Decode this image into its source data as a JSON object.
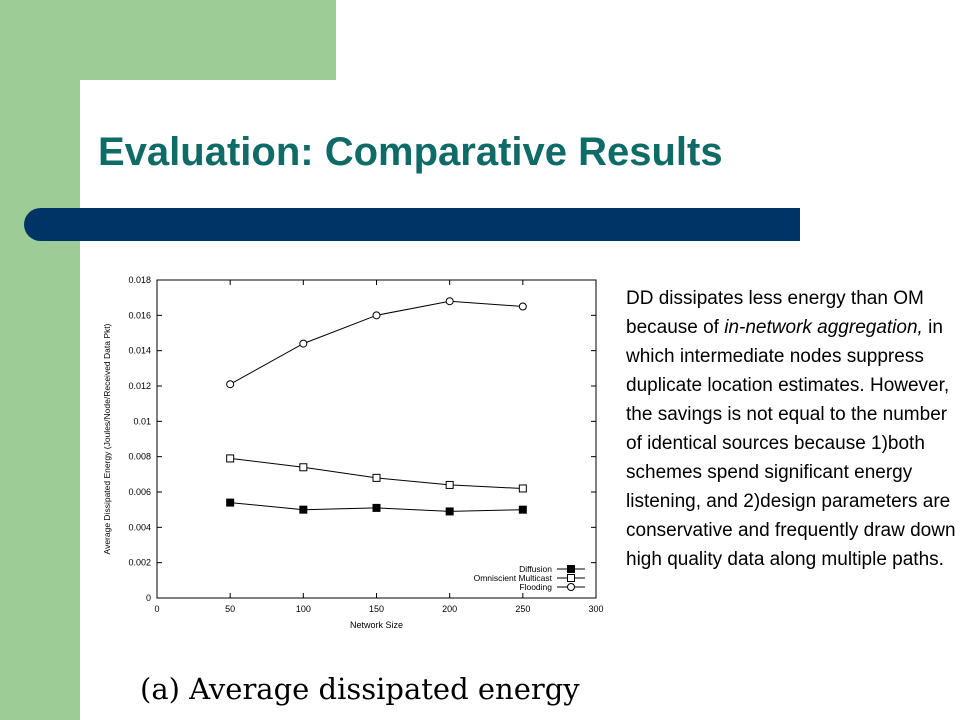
{
  "slide": {
    "title": "Evaluation: Comparative Results",
    "caption": "(a) Average dissipated energy",
    "body": {
      "part1": "DD dissipates less energy than OM because of ",
      "emphasis": "in-network aggregation,",
      "part2": " in which intermediate nodes suppress duplicate location estimates. However, the savings is not equal to the number of identical sources because 1)both schemes spend significant energy listening, and 2)design parameters are conservative and frequently draw down high quality data along multiple paths."
    },
    "colors": {
      "band": "#9dcc97",
      "title_bar": "#003466",
      "title_text": "#0f6b67"
    }
  },
  "chart_data": {
    "type": "line",
    "xlabel": "Network Size",
    "ylabel": "Average Dissipated Energy (Joules/Node/Received Data Pkt)",
    "xlim": [
      0,
      300
    ],
    "ylim": [
      0,
      0.018
    ],
    "x_ticks": [
      "0",
      "50",
      "100",
      "150",
      "200",
      "250",
      "300"
    ],
    "y_ticks": [
      "0",
      "0.002",
      "0.004",
      "0.006",
      "0.008",
      "0.01",
      "0.012",
      "0.014",
      "0.016",
      "0.018"
    ],
    "x": [
      50,
      100,
      150,
      200,
      250
    ],
    "legend_position": "bottom-right",
    "grid": false,
    "series": [
      {
        "name": "Diffusion",
        "marker": "filled-square",
        "values": [
          0.0054,
          0.005,
          0.0051,
          0.0049,
          0.005
        ]
      },
      {
        "name": "Omniscient Multicast",
        "marker": "open-square",
        "values": [
          0.0079,
          0.0074,
          0.0068,
          0.0064,
          0.0062
        ]
      },
      {
        "name": "Flooding",
        "marker": "open-circle",
        "values": [
          0.0121,
          0.0144,
          0.016,
          0.0168,
          0.0165
        ]
      }
    ]
  }
}
